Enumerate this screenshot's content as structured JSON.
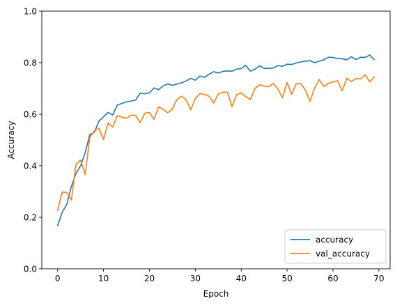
{
  "chart_data": {
    "type": "line",
    "title": "",
    "xlabel": "Epoch",
    "ylabel": "Accuracy",
    "xlim": [
      -3.45,
      72.45
    ],
    "ylim": [
      0.0,
      1.0
    ],
    "xticks": [
      0,
      10,
      20,
      30,
      40,
      50,
      60,
      70
    ],
    "yticks": [
      0.0,
      0.2,
      0.4,
      0.6,
      0.8,
      1.0
    ],
    "xtick_labels": [
      "0",
      "10",
      "20",
      "30",
      "40",
      "50",
      "60",
      "70"
    ],
    "ytick_labels": [
      "0.0",
      "0.2",
      "0.4",
      "0.6",
      "0.8",
      "1.0"
    ],
    "grid": false,
    "legend": {
      "placement": "lower-right"
    },
    "x": [
      0,
      1,
      2,
      3,
      4,
      5,
      6,
      7,
      8,
      9,
      10,
      11,
      12,
      13,
      14,
      15,
      16,
      17,
      18,
      19,
      20,
      21,
      22,
      23,
      24,
      25,
      26,
      27,
      28,
      29,
      30,
      31,
      32,
      33,
      34,
      35,
      36,
      37,
      38,
      39,
      40,
      41,
      42,
      43,
      44,
      45,
      46,
      47,
      48,
      49,
      50,
      51,
      52,
      53,
      54,
      55,
      56,
      57,
      58,
      59,
      60,
      61,
      62,
      63,
      64,
      65,
      66,
      67,
      68,
      69
    ],
    "series": [
      {
        "name": "accuracy",
        "color": "#1f77b4",
        "values": [
          0.167,
          0.22,
          0.25,
          0.32,
          0.37,
          0.4,
          0.45,
          0.52,
          0.53,
          0.573,
          0.59,
          0.607,
          0.597,
          0.635,
          0.642,
          0.648,
          0.651,
          0.655,
          0.682,
          0.679,
          0.683,
          0.702,
          0.695,
          0.71,
          0.718,
          0.712,
          0.717,
          0.722,
          0.729,
          0.739,
          0.732,
          0.748,
          0.743,
          0.755,
          0.765,
          0.76,
          0.766,
          0.768,
          0.767,
          0.775,
          0.777,
          0.79,
          0.767,
          0.775,
          0.788,
          0.778,
          0.778,
          0.779,
          0.789,
          0.786,
          0.794,
          0.793,
          0.799,
          0.803,
          0.806,
          0.808,
          0.8,
          0.806,
          0.811,
          0.821,
          0.82,
          0.816,
          0.815,
          0.811,
          0.823,
          0.812,
          0.821,
          0.82,
          0.83,
          0.812
        ]
      },
      {
        "name": "val_accuracy",
        "color": "#ff7f0e",
        "values": [
          0.226,
          0.298,
          0.296,
          0.267,
          0.405,
          0.422,
          0.366,
          0.509,
          0.535,
          0.545,
          0.502,
          0.566,
          0.55,
          0.594,
          0.589,
          0.584,
          0.596,
          0.595,
          0.567,
          0.604,
          0.607,
          0.58,
          0.628,
          0.619,
          0.605,
          0.621,
          0.657,
          0.67,
          0.656,
          0.617,
          0.66,
          0.68,
          0.677,
          0.67,
          0.643,
          0.678,
          0.686,
          0.685,
          0.629,
          0.676,
          0.683,
          0.668,
          0.657,
          0.7,
          0.714,
          0.709,
          0.707,
          0.719,
          0.698,
          0.664,
          0.723,
          0.677,
          0.719,
          0.718,
          0.693,
          0.65,
          0.702,
          0.735,
          0.708,
          0.719,
          0.726,
          0.73,
          0.691,
          0.74,
          0.727,
          0.738,
          0.737,
          0.753,
          0.726,
          0.745
        ]
      }
    ]
  }
}
